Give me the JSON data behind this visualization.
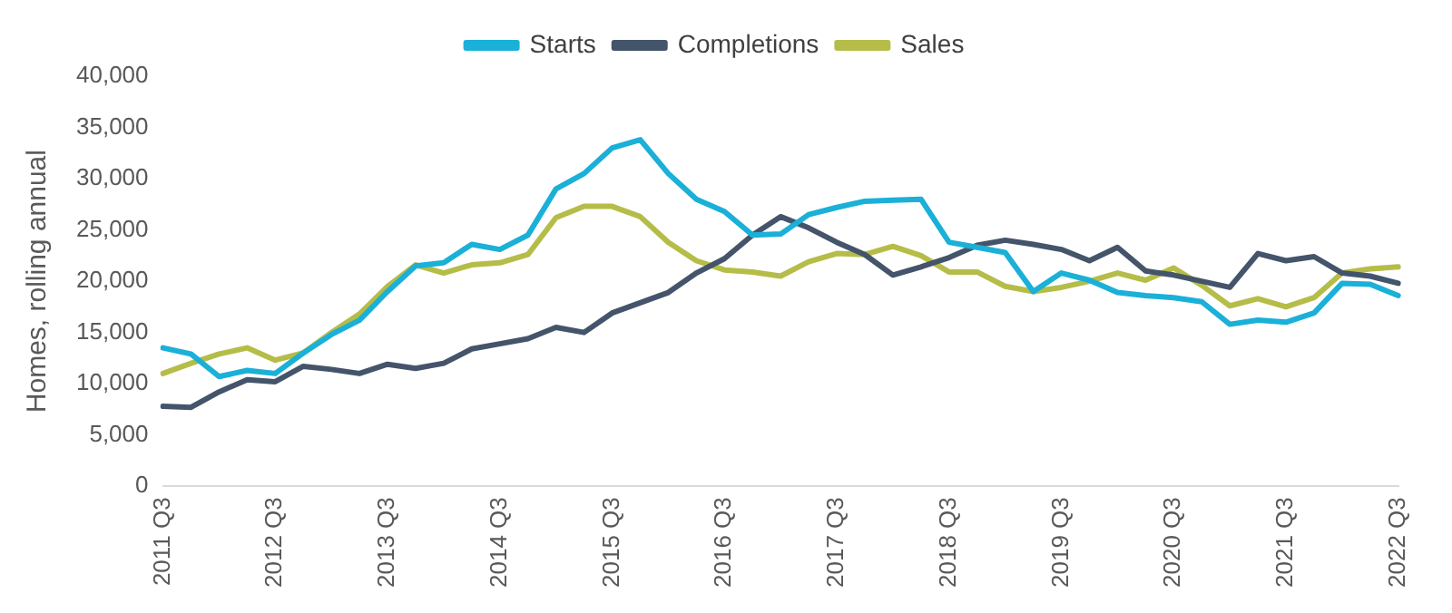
{
  "chart_data": {
    "type": "line",
    "ylabel": "Homes, rolling annual",
    "categories": [
      "2011 Q3",
      null,
      null,
      null,
      "2012 Q3",
      null,
      null,
      null,
      "2013 Q3",
      null,
      null,
      null,
      "2014 Q3",
      null,
      null,
      null,
      "2015 Q3",
      null,
      null,
      null,
      "2016 Q3",
      null,
      null,
      null,
      "2017 Q3",
      null,
      null,
      null,
      "2018 Q3",
      null,
      null,
      null,
      "2019 Q3",
      null,
      null,
      null,
      "2020 Q3",
      null,
      null,
      null,
      "2021 Q3",
      null,
      null,
      null,
      "2022 Q3"
    ],
    "series": [
      {
        "name": "Starts",
        "color": "#1ab0d8",
        "values": [
          13500,
          12900,
          10700,
          11300,
          11000,
          13000,
          14800,
          16200,
          19000,
          21500,
          21800,
          23600,
          23100,
          24500,
          29000,
          30500,
          33000,
          33800,
          30500,
          28000,
          26800,
          24500,
          24600,
          26500,
          27200,
          27800,
          27900,
          28000,
          23800,
          23300,
          22800,
          19000,
          20800,
          20100,
          18900,
          18600,
          18400,
          18000,
          15800,
          16200,
          16000,
          16900,
          19800,
          19700,
          18600
        ]
      },
      {
        "name": "Completions",
        "color": "#44546a",
        "values": [
          7800,
          7700,
          9200,
          10400,
          10200,
          11700,
          11400,
          11000,
          11900,
          11500,
          12000,
          13400,
          13900,
          14400,
          15500,
          15000,
          16900,
          17900,
          18900,
          20800,
          22200,
          24500,
          26300,
          25200,
          23800,
          22600,
          20600,
          21400,
          22300,
          23500,
          24000,
          23600,
          23100,
          22000,
          23300,
          21000,
          20600,
          20000,
          19400,
          22700,
          22000,
          22400,
          20800,
          20500,
          19800
        ]
      },
      {
        "name": "Sales",
        "color": "#b5bd48",
        "values": [
          11000,
          12000,
          12900,
          13500,
          12300,
          13000,
          15000,
          16800,
          19500,
          21600,
          20800,
          21600,
          21800,
          22600,
          26200,
          27300,
          27300,
          26300,
          23800,
          22000,
          21100,
          20900,
          20500,
          21900,
          22700,
          22600,
          23400,
          22500,
          20900,
          20900,
          19500,
          19000,
          19400,
          20000,
          20800,
          20100,
          21300,
          19600,
          17600,
          18300,
          17500,
          18400,
          20800,
          21200,
          21400
        ]
      }
    ],
    "ylim": [
      0,
      40000
    ],
    "yticks": [
      0,
      {
        "value": 5000,
        "label": "5,000"
      },
      {
        "value": 10000,
        "label": "10,000"
      },
      {
        "value": 15000,
        "label": "15,000"
      },
      {
        "value": 20000,
        "label": "20,000"
      },
      {
        "value": 25000,
        "label": "25,000"
      },
      {
        "value": 30000,
        "label": "30,000"
      },
      {
        "value": 35000,
        "label": "35,000"
      },
      {
        "value": 40000,
        "label": "40,000"
      }
    ],
    "grid": false,
    "legend": "top",
    "marker": "none",
    "line_style": "solid"
  }
}
